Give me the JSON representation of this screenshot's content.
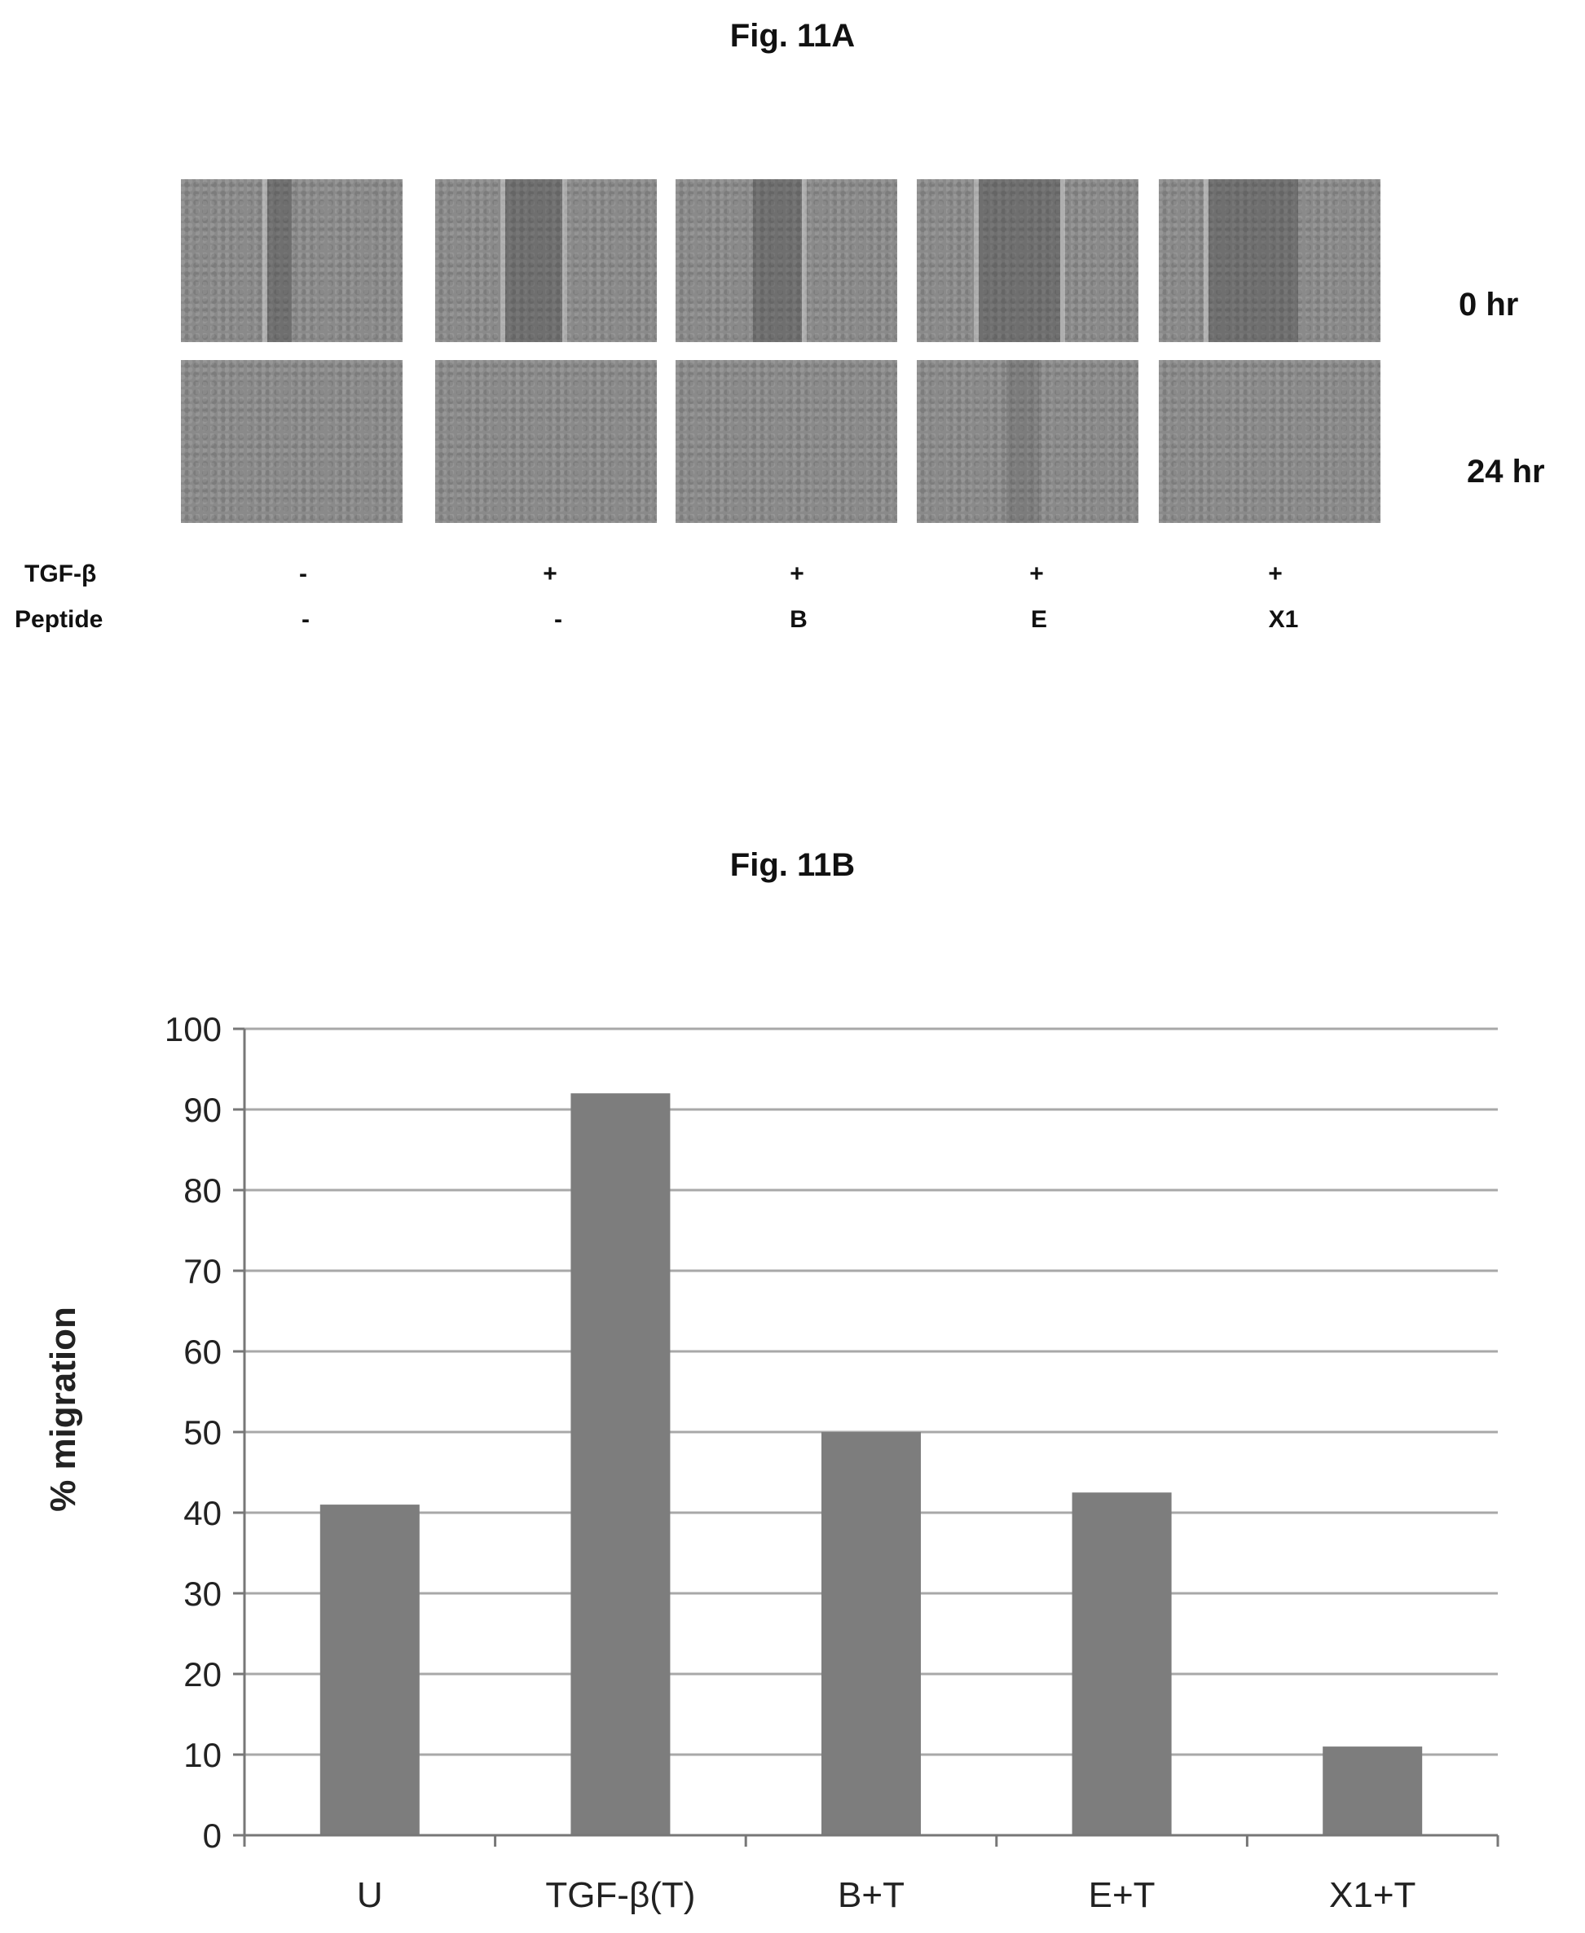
{
  "figure_a": {
    "title": "Fig. 11A",
    "row_labels": [
      "0 hr",
      "24 hr"
    ],
    "condition_labels": [
      "TGF-β",
      "Peptide"
    ],
    "tgf_values": [
      "-",
      "+",
      "+",
      "+",
      "+"
    ],
    "peptide_values": [
      "-",
      "-",
      "B",
      "E",
      "X1"
    ]
  },
  "figure_b": {
    "title": "Fig. 11B"
  },
  "chart_data": {
    "type": "bar",
    "categories": [
      "U",
      "TGF-β(T)",
      "B+T",
      "E+T",
      "X1+T"
    ],
    "values": [
      41,
      92,
      50,
      42.5,
      11
    ],
    "title": "",
    "xlabel": "",
    "ylabel": "% migration",
    "ylim": [
      0,
      100
    ],
    "yticks": [
      0,
      10,
      20,
      30,
      40,
      50,
      60,
      70,
      80,
      90,
      100
    ],
    "grid": true,
    "bar_color": "#7d7d7d"
  }
}
